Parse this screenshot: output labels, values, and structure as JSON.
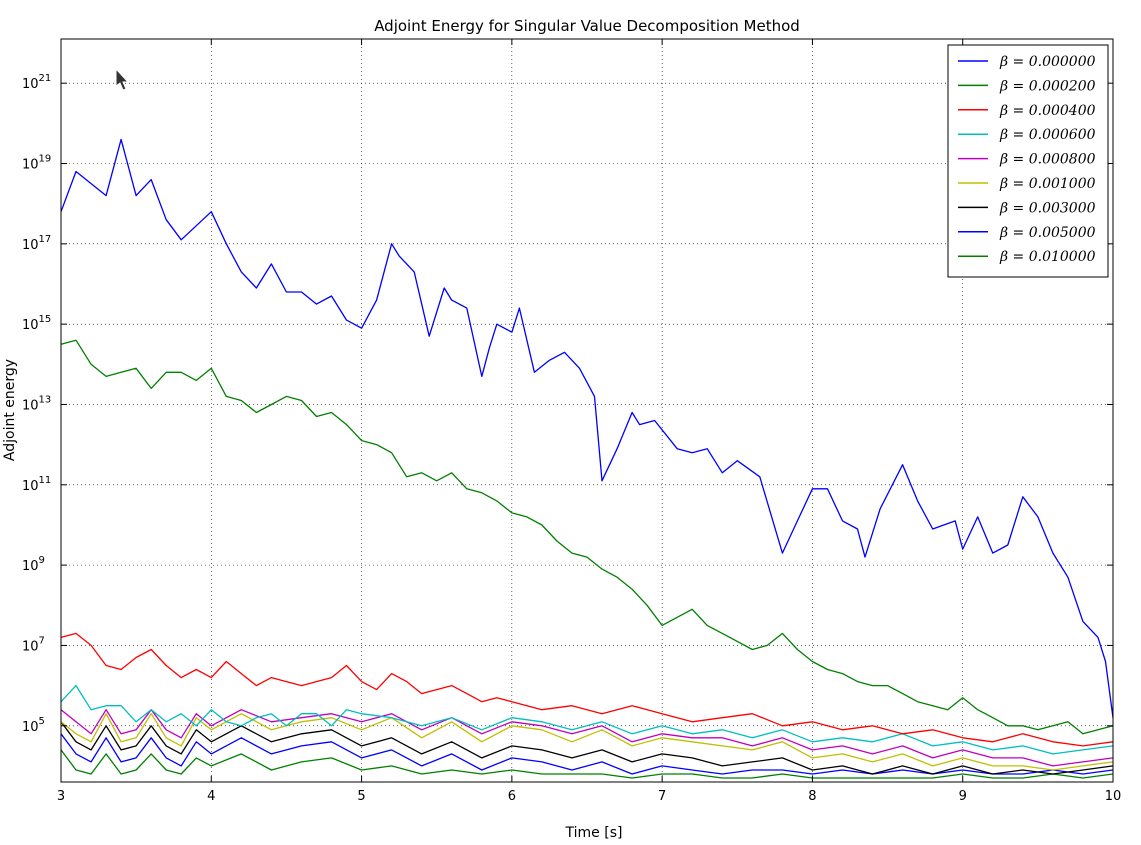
{
  "chart_data": {
    "type": "line",
    "title": "Adjoint Energy for Singular Value Decomposition Method",
    "xlabel": "Time [s]",
    "ylabel": "Adjoint energy",
    "xlim": [
      3,
      10
    ],
    "ylim_log10": [
      3.6,
      22.1
    ],
    "yscale": "log",
    "grid": true,
    "legend_loc": "upper right",
    "x_ticks": [
      3,
      4,
      5,
      6,
      7,
      8,
      9,
      10
    ],
    "x_tick_labels": [
      "3",
      "4",
      "5",
      "6",
      "7",
      "8",
      "9",
      "10"
    ],
    "y_ticks_log10": [
      5,
      7,
      9,
      11,
      13,
      15,
      17,
      19,
      21
    ],
    "y_tick_bases": [
      "10",
      "10",
      "10",
      "10",
      "10",
      "10",
      "10",
      "10",
      "10"
    ],
    "y_tick_exponents": [
      "5",
      "7",
      "9",
      "11",
      "13",
      "15",
      "17",
      "19",
      "21"
    ],
    "series": [
      {
        "name": "β = 0.000000",
        "legend_label": "β = 0.000000",
        "color": "#0000ff",
        "x": [
          3.0,
          3.1,
          3.2,
          3.3,
          3.4,
          3.5,
          3.6,
          3.7,
          3.8,
          4.0,
          4.1,
          4.2,
          4.3,
          4.4,
          4.5,
          4.6,
          4.7,
          4.8,
          4.9,
          5.0,
          5.1,
          5.2,
          5.25,
          5.35,
          5.45,
          5.55,
          5.6,
          5.7,
          5.8,
          5.85,
          5.9,
          6.0,
          6.05,
          6.15,
          6.25,
          6.35,
          6.45,
          6.55,
          6.6,
          6.7,
          6.8,
          6.85,
          6.95,
          7.1,
          7.2,
          7.3,
          7.4,
          7.5,
          7.65,
          7.8,
          7.9,
          8.0,
          8.1,
          8.2,
          8.3,
          8.35,
          8.45,
          8.6,
          8.7,
          8.8,
          8.95,
          9.0,
          9.1,
          9.2,
          9.3,
          9.4,
          9.5,
          9.6,
          9.7,
          9.8,
          9.9,
          9.95,
          10.0
        ],
        "y_log10": [
          17.8,
          18.8,
          18.5,
          18.2,
          19.6,
          18.2,
          18.6,
          17.6,
          17.1,
          17.8,
          17.0,
          16.3,
          15.9,
          16.5,
          15.8,
          15.8,
          15.5,
          15.7,
          15.1,
          14.9,
          15.6,
          17.0,
          16.7,
          16.3,
          14.7,
          15.9,
          15.6,
          15.4,
          13.7,
          14.4,
          15.0,
          14.8,
          15.4,
          13.8,
          14.1,
          14.3,
          13.9,
          13.2,
          11.1,
          11.9,
          12.8,
          12.5,
          12.6,
          11.9,
          11.8,
          11.9,
          11.3,
          11.6,
          11.2,
          9.3,
          10.1,
          10.9,
          10.9,
          10.1,
          9.9,
          9.2,
          10.4,
          11.5,
          10.6,
          9.9,
          10.1,
          9.4,
          10.2,
          9.3,
          9.5,
          10.7,
          10.2,
          9.3,
          8.7,
          7.6,
          7.2,
          6.6,
          5.2
        ]
      },
      {
        "name": "β = 0.000200",
        "legend_label": "β = 0.000200",
        "color": "#008000",
        "x": [
          3.0,
          3.1,
          3.2,
          3.3,
          3.4,
          3.5,
          3.6,
          3.7,
          3.8,
          3.9,
          4.0,
          4.1,
          4.2,
          4.3,
          4.4,
          4.5,
          4.6,
          4.7,
          4.8,
          4.9,
          5.0,
          5.1,
          5.2,
          5.3,
          5.4,
          5.5,
          5.6,
          5.7,
          5.8,
          5.9,
          6.0,
          6.1,
          6.2,
          6.3,
          6.4,
          6.5,
          6.6,
          6.7,
          6.8,
          6.9,
          7.0,
          7.1,
          7.2,
          7.3,
          7.4,
          7.5,
          7.6,
          7.7,
          7.8,
          7.9,
          8.0,
          8.1,
          8.2,
          8.3,
          8.4,
          8.5,
          8.6,
          8.7,
          8.8,
          8.9,
          9.0,
          9.1,
          9.2,
          9.3,
          9.4,
          9.5,
          9.6,
          9.7,
          9.8,
          9.9,
          10.0
        ],
        "y_log10": [
          14.5,
          14.6,
          14.0,
          13.7,
          13.8,
          13.9,
          13.4,
          13.8,
          13.8,
          13.6,
          13.9,
          13.2,
          13.1,
          12.8,
          13.0,
          13.2,
          13.1,
          12.7,
          12.8,
          12.5,
          12.1,
          12.0,
          11.8,
          11.2,
          11.3,
          11.1,
          11.3,
          10.9,
          10.8,
          10.6,
          10.3,
          10.2,
          10.0,
          9.6,
          9.3,
          9.2,
          8.9,
          8.7,
          8.4,
          8.0,
          7.5,
          7.7,
          7.9,
          7.5,
          7.3,
          7.1,
          6.9,
          7.0,
          7.3,
          6.9,
          6.6,
          6.4,
          6.3,
          6.1,
          6.0,
          6.0,
          5.8,
          5.6,
          5.5,
          5.4,
          5.7,
          5.4,
          5.2,
          5.0,
          5.0,
          4.9,
          5.0,
          5.1,
          4.8,
          4.9,
          5.0
        ]
      },
      {
        "name": "β = 0.000400",
        "legend_label": "β = 0.000400",
        "color": "#ff0000",
        "x": [
          3.0,
          3.1,
          3.2,
          3.3,
          3.4,
          3.5,
          3.6,
          3.7,
          3.8,
          3.9,
          4.0,
          4.1,
          4.2,
          4.3,
          4.4,
          4.5,
          4.6,
          4.7,
          4.8,
          4.9,
          5.0,
          5.1,
          5.2,
          5.3,
          5.4,
          5.5,
          5.6,
          5.7,
          5.8,
          5.9,
          6.0,
          6.2,
          6.4,
          6.6,
          6.8,
          7.0,
          7.2,
          7.4,
          7.6,
          7.8,
          8.0,
          8.2,
          8.4,
          8.6,
          8.8,
          9.0,
          9.2,
          9.4,
          9.6,
          9.8,
          10.0
        ],
        "y_log10": [
          7.2,
          7.3,
          7.0,
          6.5,
          6.4,
          6.7,
          6.9,
          6.5,
          6.2,
          6.4,
          6.2,
          6.6,
          6.3,
          6.0,
          6.2,
          6.1,
          6.0,
          6.1,
          6.2,
          6.5,
          6.1,
          5.9,
          6.3,
          6.1,
          5.8,
          5.9,
          6.0,
          5.8,
          5.6,
          5.7,
          5.6,
          5.4,
          5.5,
          5.3,
          5.5,
          5.3,
          5.1,
          5.2,
          5.3,
          5.0,
          5.1,
          4.9,
          5.0,
          4.8,
          4.9,
          4.7,
          4.6,
          4.8,
          4.6,
          4.5,
          4.6
        ]
      },
      {
        "name": "β = 0.000600",
        "legend_label": "β = 0.000600",
        "color": "#00bfbf",
        "x": [
          3.0,
          3.1,
          3.2,
          3.3,
          3.4,
          3.5,
          3.6,
          3.7,
          3.8,
          3.9,
          4.0,
          4.1,
          4.2,
          4.3,
          4.4,
          4.5,
          4.6,
          4.7,
          4.8,
          4.9,
          5.0,
          5.2,
          5.4,
          5.6,
          5.8,
          6.0,
          6.2,
          6.4,
          6.6,
          6.8,
          7.0,
          7.2,
          7.4,
          7.6,
          7.8,
          8.0,
          8.2,
          8.4,
          8.6,
          8.8,
          9.0,
          9.2,
          9.4,
          9.6,
          9.8,
          10.0
        ],
        "y_log10": [
          5.6,
          6.0,
          5.4,
          5.5,
          5.5,
          5.1,
          5.4,
          5.1,
          5.3,
          5.0,
          5.4,
          5.1,
          5.0,
          5.2,
          5.3,
          5.0,
          5.3,
          5.3,
          5.0,
          5.4,
          5.3,
          5.2,
          5.0,
          5.2,
          4.9,
          5.2,
          5.1,
          4.9,
          5.1,
          4.8,
          5.0,
          4.8,
          4.9,
          4.7,
          4.9,
          4.6,
          4.7,
          4.6,
          4.8,
          4.5,
          4.6,
          4.4,
          4.5,
          4.3,
          4.4,
          4.5
        ]
      },
      {
        "name": "β = 0.000800",
        "legend_label": "β = 0.000800",
        "color": "#bf00bf",
        "x": [
          3.0,
          3.1,
          3.2,
          3.3,
          3.4,
          3.5,
          3.6,
          3.7,
          3.8,
          3.9,
          4.0,
          4.2,
          4.4,
          4.6,
          4.8,
          5.0,
          5.2,
          5.4,
          5.6,
          5.8,
          6.0,
          6.2,
          6.4,
          6.6,
          6.8,
          7.0,
          7.2,
          7.4,
          7.6,
          7.8,
          8.0,
          8.2,
          8.4,
          8.6,
          8.8,
          9.0,
          9.2,
          9.4,
          9.6,
          9.8,
          10.0
        ],
        "y_log10": [
          5.4,
          5.1,
          4.8,
          5.4,
          4.8,
          4.9,
          5.4,
          4.9,
          4.7,
          5.3,
          5.0,
          5.4,
          5.1,
          5.2,
          5.3,
          5.1,
          5.3,
          4.9,
          5.2,
          4.8,
          5.1,
          5.0,
          4.8,
          5.0,
          4.6,
          4.8,
          4.7,
          4.7,
          4.5,
          4.7,
          4.4,
          4.5,
          4.3,
          4.5,
          4.2,
          4.4,
          4.2,
          4.2,
          4.0,
          4.1,
          4.2
        ]
      },
      {
        "name": "β = 0.001000",
        "legend_label": "β = 0.001000",
        "color": "#bfbf00",
        "x": [
          3.0,
          3.1,
          3.2,
          3.3,
          3.4,
          3.5,
          3.6,
          3.7,
          3.8,
          3.9,
          4.0,
          4.2,
          4.4,
          4.6,
          4.8,
          5.0,
          5.2,
          5.4,
          5.6,
          5.8,
          6.0,
          6.2,
          6.4,
          6.6,
          6.8,
          7.0,
          7.2,
          7.4,
          7.6,
          7.8,
          8.0,
          8.2,
          8.4,
          8.6,
          8.8,
          9.0,
          9.2,
          9.4,
          9.6,
          9.8,
          10.0
        ],
        "y_log10": [
          5.1,
          4.8,
          4.6,
          5.3,
          4.6,
          4.7,
          5.3,
          4.7,
          4.5,
          5.2,
          4.9,
          5.3,
          4.9,
          5.1,
          5.2,
          4.9,
          5.2,
          4.7,
          5.1,
          4.6,
          5.0,
          4.9,
          4.6,
          4.9,
          4.5,
          4.7,
          4.6,
          4.5,
          4.4,
          4.6,
          4.2,
          4.3,
          4.1,
          4.3,
          4.0,
          4.2,
          4.0,
          4.0,
          3.9,
          4.0,
          4.1
        ]
      },
      {
        "name": "β = 0.003000",
        "legend_label": "β = 0.003000",
        "color": "#000000",
        "x": [
          3.0,
          3.1,
          3.2,
          3.3,
          3.4,
          3.5,
          3.6,
          3.7,
          3.8,
          3.9,
          4.0,
          4.2,
          4.4,
          4.6,
          4.8,
          5.0,
          5.2,
          5.4,
          5.6,
          5.8,
          6.0,
          6.2,
          6.4,
          6.6,
          6.8,
          7.0,
          7.2,
          7.4,
          7.6,
          7.8,
          8.0,
          8.2,
          8.4,
          8.6,
          8.8,
          9.0,
          9.2,
          9.4,
          9.6,
          9.8,
          10.0
        ],
        "y_log10": [
          5.1,
          4.6,
          4.4,
          5.0,
          4.4,
          4.5,
          5.0,
          4.5,
          4.3,
          4.9,
          4.6,
          5.0,
          4.6,
          4.8,
          4.9,
          4.5,
          4.7,
          4.3,
          4.6,
          4.2,
          4.5,
          4.4,
          4.2,
          4.4,
          4.1,
          4.3,
          4.2,
          4.0,
          4.1,
          4.2,
          3.9,
          4.0,
          3.8,
          4.0,
          3.8,
          4.0,
          3.8,
          3.9,
          3.8,
          3.9,
          4.0
        ]
      },
      {
        "name": "β = 0.005000",
        "legend_label": "β = 0.005000",
        "color": "#0000ff",
        "x": [
          3.0,
          3.1,
          3.2,
          3.3,
          3.4,
          3.5,
          3.6,
          3.7,
          3.8,
          3.9,
          4.0,
          4.2,
          4.4,
          4.6,
          4.8,
          5.0,
          5.2,
          5.4,
          5.6,
          5.8,
          6.0,
          6.2,
          6.4,
          6.6,
          6.8,
          7.0,
          7.2,
          7.4,
          7.6,
          7.8,
          8.0,
          8.2,
          8.4,
          8.6,
          8.8,
          9.0,
          9.2,
          9.4,
          9.6,
          9.8,
          10.0
        ],
        "y_log10": [
          4.8,
          4.3,
          4.1,
          4.7,
          4.1,
          4.2,
          4.7,
          4.2,
          4.0,
          4.6,
          4.3,
          4.7,
          4.3,
          4.5,
          4.6,
          4.2,
          4.4,
          4.0,
          4.3,
          3.9,
          4.2,
          4.1,
          3.9,
          4.1,
          3.8,
          4.0,
          3.9,
          3.8,
          3.9,
          3.9,
          3.8,
          3.9,
          3.8,
          3.9,
          3.8,
          3.9,
          3.8,
          3.8,
          3.9,
          3.8,
          3.9
        ]
      },
      {
        "name": "β = 0.010000",
        "legend_label": "β = 0.010000",
        "color": "#008000",
        "x": [
          3.0,
          3.1,
          3.2,
          3.3,
          3.4,
          3.5,
          3.6,
          3.7,
          3.8,
          3.9,
          4.0,
          4.2,
          4.4,
          4.6,
          4.8,
          5.0,
          5.2,
          5.4,
          5.6,
          5.8,
          6.0,
          6.2,
          6.4,
          6.6,
          6.8,
          7.0,
          7.2,
          7.4,
          7.6,
          7.8,
          8.0,
          8.2,
          8.4,
          8.6,
          8.8,
          9.0,
          9.2,
          9.4,
          9.6,
          9.8,
          10.0
        ],
        "y_log10": [
          4.4,
          3.9,
          3.8,
          4.3,
          3.8,
          3.9,
          4.3,
          3.9,
          3.8,
          4.2,
          4.0,
          4.3,
          3.9,
          4.1,
          4.2,
          3.9,
          4.0,
          3.8,
          3.9,
          3.8,
          3.9,
          3.8,
          3.8,
          3.8,
          3.7,
          3.8,
          3.8,
          3.7,
          3.7,
          3.8,
          3.7,
          3.7,
          3.7,
          3.7,
          3.7,
          3.8,
          3.7,
          3.7,
          3.8,
          3.7,
          3.8
        ]
      }
    ]
  }
}
